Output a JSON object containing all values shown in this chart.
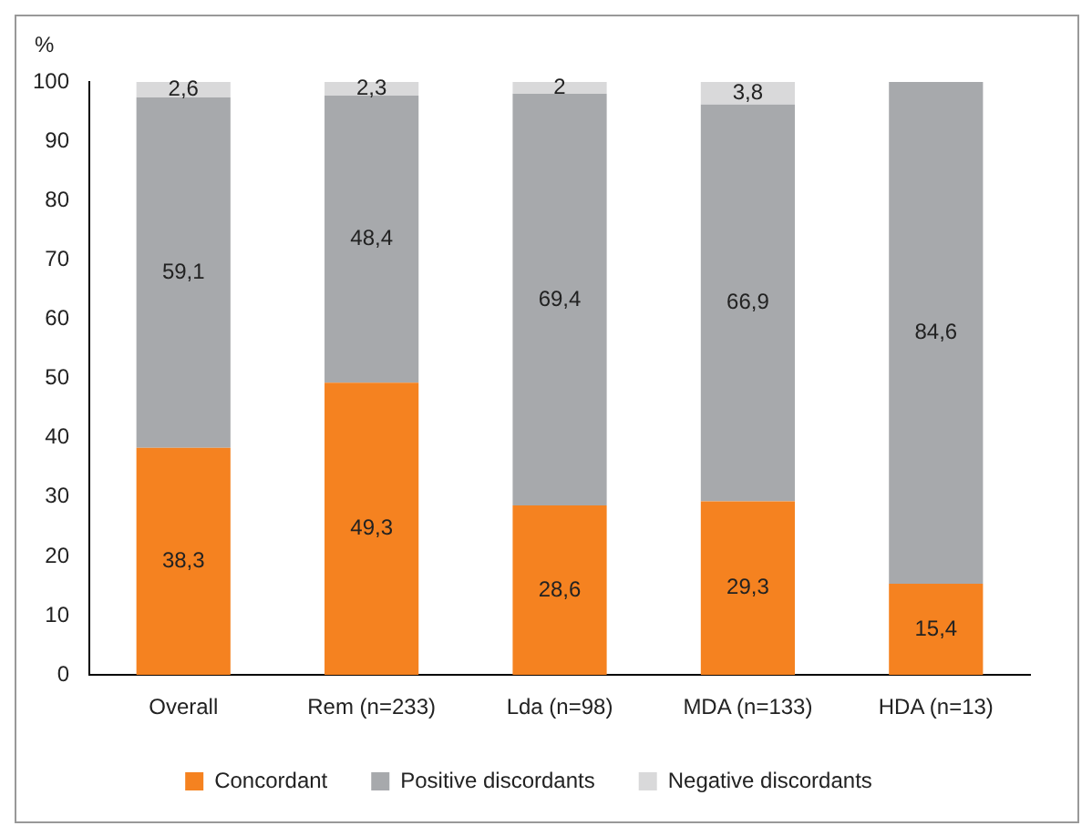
{
  "chart_data": {
    "type": "bar",
    "stacked": true,
    "ylabel": "%",
    "categories": [
      "Overall",
      "Rem (n=233)",
      "Lda (n=98)",
      "MDA (n=133)",
      "HDA (n=13)"
    ],
    "series": [
      {
        "name": "Concordant",
        "color": "#f58220",
        "values": [
          38.3,
          49.3,
          28.6,
          29.3,
          15.4
        ],
        "value_labels": [
          "38,3",
          "49,3",
          "28,6",
          "29,3",
          "15,4"
        ]
      },
      {
        "name": "Positive discordants",
        "color": "#a7a9ac",
        "values": [
          59.1,
          48.4,
          69.4,
          66.9,
          84.6
        ],
        "value_labels": [
          "59,1",
          "48,4",
          "69,4",
          "66,9",
          "84,6"
        ]
      },
      {
        "name": "Negative discordants",
        "color": "#d9d9da",
        "values": [
          2.6,
          2.3,
          2,
          3.8,
          null
        ],
        "value_labels": [
          "2,6",
          "2,3",
          "2",
          "3,8",
          null
        ]
      }
    ],
    "ylim": [
      0,
      100
    ],
    "yticks": [
      0,
      10,
      20,
      30,
      40,
      50,
      60,
      70,
      80,
      90,
      100
    ],
    "grid": false,
    "legend": "bottom"
  }
}
